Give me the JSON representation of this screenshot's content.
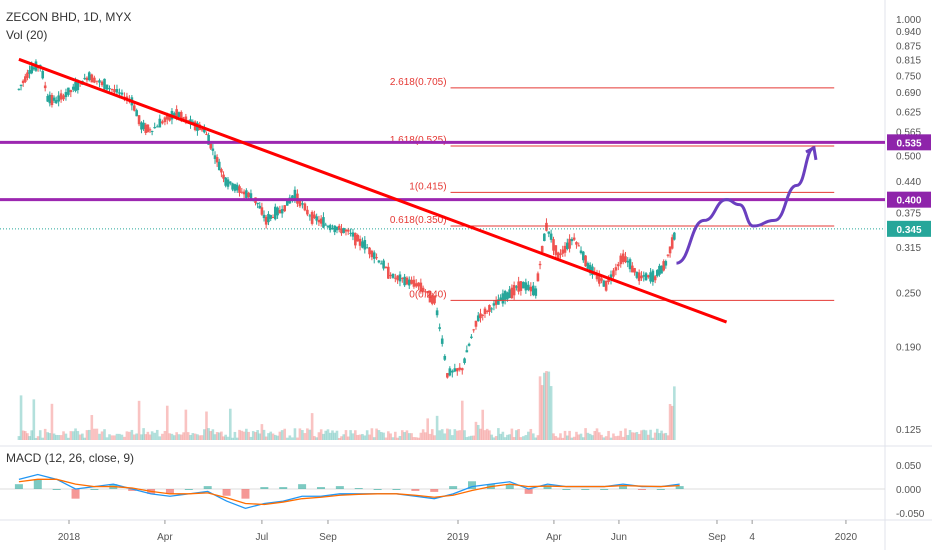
{
  "header": {
    "symbol_line": "ZECON BHD, 1D, MYX",
    "volume_label": "Vol (20)"
  },
  "chart_data": [
    {
      "type": "candlestick",
      "title": "ZECON BHD, 1D, MYX",
      "scale": "log",
      "ylim": [
        0.115,
        1.05
      ],
      "x_ticks": [
        "2018",
        "Apr",
        "Jul",
        "Sep",
        "2019",
        "Apr",
        "Jun",
        "Sep",
        "4",
        "2020"
      ],
      "y_ticks": [
        "1.000",
        "0.940",
        "0.875",
        "0.815",
        "0.750",
        "0.690",
        "0.625",
        "0.565",
        "0.500",
        "0.440",
        "0.375",
        "0.315",
        "0.250",
        "0.190",
        "0.125"
      ],
      "y_tick_values": [
        1.0,
        0.94,
        0.875,
        0.815,
        0.75,
        0.69,
        0.625,
        0.565,
        0.5,
        0.44,
        0.375,
        0.315,
        0.25,
        0.19,
        0.125
      ],
      "price_path": [
        {
          "t": "2017-11-15",
          "v": 0.7
        },
        {
          "t": "2017-11-25",
          "v": 0.77
        },
        {
          "t": "2017-12-05",
          "v": 0.79
        },
        {
          "t": "2017-12-12",
          "v": 0.67
        },
        {
          "t": "2017-12-20",
          "v": 0.66
        },
        {
          "t": "2018-01-05",
          "v": 0.7
        },
        {
          "t": "2018-01-20",
          "v": 0.75
        },
        {
          "t": "2018-02-01",
          "v": 0.72
        },
        {
          "t": "2018-02-15",
          "v": 0.69
        },
        {
          "t": "2018-03-01",
          "v": 0.66
        },
        {
          "t": "2018-03-10",
          "v": 0.58
        },
        {
          "t": "2018-03-20",
          "v": 0.57
        },
        {
          "t": "2018-04-01",
          "v": 0.6
        },
        {
          "t": "2018-04-12",
          "v": 0.62
        },
        {
          "t": "2018-04-25",
          "v": 0.59
        },
        {
          "t": "2018-05-08",
          "v": 0.57
        },
        {
          "t": "2018-05-18",
          "v": 0.5
        },
        {
          "t": "2018-05-28",
          "v": 0.44
        },
        {
          "t": "2018-06-10",
          "v": 0.42
        },
        {
          "t": "2018-06-25",
          "v": 0.4
        },
        {
          "t": "2018-07-05",
          "v": 0.36
        },
        {
          "t": "2018-07-20",
          "v": 0.38
        },
        {
          "t": "2018-08-01",
          "v": 0.41
        },
        {
          "t": "2018-08-15",
          "v": 0.37
        },
        {
          "t": "2018-09-01",
          "v": 0.35
        },
        {
          "t": "2018-09-20",
          "v": 0.34
        },
        {
          "t": "2018-10-10",
          "v": 0.31
        },
        {
          "t": "2018-11-01",
          "v": 0.27
        },
        {
          "t": "2018-11-25",
          "v": 0.26
        },
        {
          "t": "2018-12-10",
          "v": 0.24
        },
        {
          "t": "2018-12-22",
          "v": 0.165
        },
        {
          "t": "2019-01-05",
          "v": 0.17
        },
        {
          "t": "2019-01-20",
          "v": 0.22
        },
        {
          "t": "2019-02-10",
          "v": 0.24
        },
        {
          "t": "2019-03-01",
          "v": 0.26
        },
        {
          "t": "2019-03-15",
          "v": 0.25
        },
        {
          "t": "2019-03-25",
          "v": 0.35
        },
        {
          "t": "2019-04-05",
          "v": 0.3
        },
        {
          "t": "2019-04-20",
          "v": 0.33
        },
        {
          "t": "2019-05-05",
          "v": 0.28
        },
        {
          "t": "2019-05-20",
          "v": 0.26
        },
        {
          "t": "2019-06-05",
          "v": 0.3
        },
        {
          "t": "2019-06-20",
          "v": 0.27
        },
        {
          "t": "2019-07-05",
          "v": 0.27
        },
        {
          "t": "2019-07-15",
          "v": 0.29
        },
        {
          "t": "2019-07-25",
          "v": 0.345
        }
      ],
      "trendline": {
        "start": {
          "t": "2017-11-15",
          "v": 0.815
        },
        "end": {
          "t": "2019-09-10",
          "v": 0.215
        },
        "color": "#ff0000"
      },
      "fib_levels": [
        {
          "label": "2.618(0.705)",
          "value": 0.705
        },
        {
          "label": "1.618(0.525)",
          "value": 0.525
        },
        {
          "label": "1(0.415)",
          "value": 0.415
        },
        {
          "label": "0.618(0.350)",
          "value": 0.35
        },
        {
          "label": "0(0.240)",
          "value": 0.24
        }
      ],
      "horizontal_levels": [
        {
          "label": "0.535",
          "value": 0.535
        },
        {
          "label": "0.400",
          "value": 0.4
        }
      ],
      "last_price": {
        "label": "0.345",
        "value": 0.345
      },
      "projection_path": [
        {
          "t": "2019-07-25",
          "v": 0.29
        },
        {
          "t": "2019-08-20",
          "v": 0.36
        },
        {
          "t": "2019-09-10",
          "v": 0.4
        },
        {
          "t": "2019-09-22",
          "v": 0.39
        },
        {
          "t": "2019-10-05",
          "v": 0.35
        },
        {
          "t": "2019-10-25",
          "v": 0.36
        },
        {
          "t": "2019-11-15",
          "v": 0.43
        },
        {
          "t": "2019-12-01",
          "v": 0.52
        }
      ],
      "colors": {
        "up": "#26a69a",
        "down": "#ef5350",
        "fib": "#e53935",
        "level": "#9c27b0",
        "level_label": "#8e24aa",
        "last_price": "#26a69a",
        "projection": "#6a3fbf"
      }
    },
    {
      "type": "bar",
      "title": "Vol (20)",
      "note": "volume bars at bottom of price pane, no axis labels"
    },
    {
      "type": "line",
      "title": "MACD (12, 26, close, 9)",
      "y_ticks": [
        "0.050",
        "0.000",
        "-0.050"
      ],
      "y_tick_values": [
        0.05,
        0.0,
        -0.05
      ],
      "ylim": [
        -0.06,
        0.06
      ],
      "series": [
        {
          "color": "#2196f3",
          "values": [
            0.02,
            0.03,
            0.02,
            0.0,
            0.005,
            0.01,
            0.0,
            -0.01,
            -0.015,
            -0.01,
            -0.005,
            -0.025,
            -0.04,
            -0.03,
            -0.025,
            -0.015,
            -0.015,
            -0.01,
            -0.01,
            -0.01,
            -0.01,
            -0.015,
            -0.02,
            -0.01,
            0.005,
            0.01,
            0.015,
            0.0,
            0.01,
            0.005,
            0.005,
            0.005,
            0.01,
            0.005,
            0.005,
            0.01
          ]
        },
        {
          "color": "#ff6d00",
          "values": [
            0.015,
            0.02,
            0.02,
            0.01,
            0.005,
            0.005,
            0.002,
            -0.005,
            -0.01,
            -0.01,
            -0.008,
            -0.018,
            -0.03,
            -0.032,
            -0.027,
            -0.02,
            -0.017,
            -0.013,
            -0.011,
            -0.01,
            -0.01,
            -0.013,
            -0.017,
            -0.013,
            -0.003,
            0.005,
            0.01,
            0.005,
            0.006,
            0.005,
            0.005,
            0.005,
            0.007,
            0.006,
            0.005,
            0.007
          ]
        }
      ]
    }
  ],
  "macd_panel": {
    "label": "MACD (12, 26, close, 9)"
  }
}
